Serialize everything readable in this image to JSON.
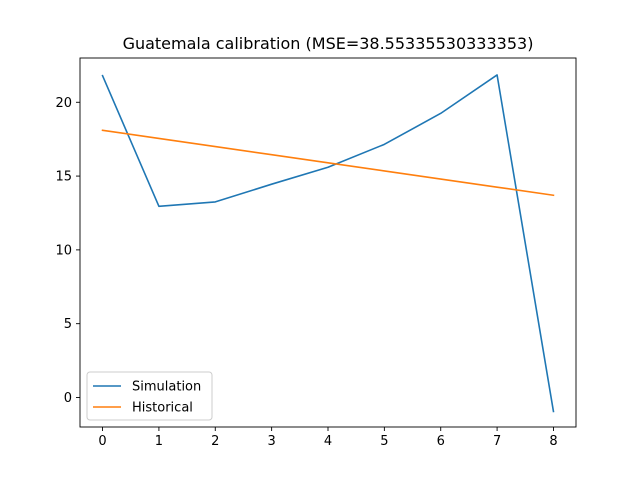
{
  "chart_data": {
    "type": "line",
    "title": "Guatemala calibration (MSE=38.55335530333353)",
    "xlabel": "",
    "ylabel": "",
    "x": [
      0,
      1,
      2,
      3,
      4,
      5,
      6,
      7,
      8
    ],
    "xlim": [
      -0.4,
      8.4
    ],
    "ylim": [
      -2.0,
      23.0
    ],
    "xticks": [
      "0",
      "1",
      "2",
      "3",
      "4",
      "5",
      "6",
      "7",
      "8"
    ],
    "yticks": [
      "0",
      "5",
      "10",
      "15",
      "20"
    ],
    "grid": false,
    "legend_position": "lower-left",
    "series": [
      {
        "name": "Simulation",
        "color": "#1f77b4",
        "values": [
          21.8,
          12.95,
          13.25,
          14.45,
          15.6,
          17.15,
          19.25,
          21.85,
          -0.95
        ]
      },
      {
        "name": "Historical",
        "color": "#ff7f0e",
        "values": [
          18.1,
          17.55,
          17.0,
          16.45,
          15.9,
          15.35,
          14.8,
          14.25,
          13.7
        ]
      }
    ]
  }
}
